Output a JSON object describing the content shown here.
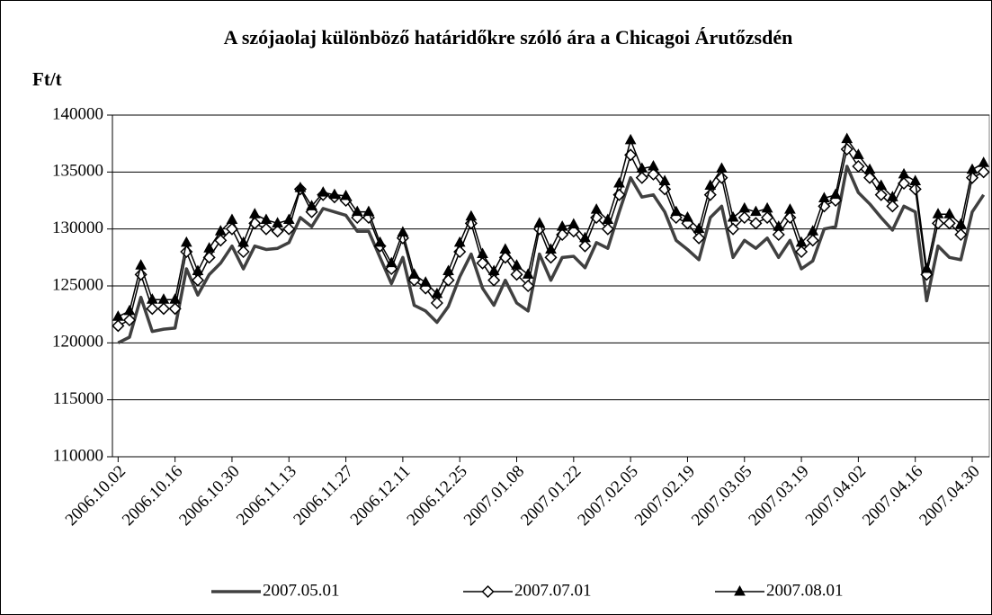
{
  "chart_data": {
    "type": "line",
    "title": "A szójaolaj különböző határidőkre szóló ára a Chicagoi Árutőzsdén",
    "y_label": "Ft/t",
    "categories": [
      "2006.10.02",
      null,
      null,
      null,
      null,
      "2006.10.16",
      null,
      null,
      null,
      null,
      "2006.10.30",
      null,
      null,
      null,
      null,
      "2006.11.13",
      null,
      null,
      null,
      null,
      "2006.11.27",
      null,
      null,
      null,
      null,
      "2006.12.11",
      null,
      null,
      null,
      null,
      "2006.12.25",
      null,
      null,
      null,
      null,
      "2007.01.08",
      null,
      null,
      null,
      null,
      "2007.01.22",
      null,
      null,
      null,
      null,
      "2007.02.05",
      null,
      null,
      null,
      null,
      "2007.02.19",
      null,
      null,
      null,
      null,
      "2007.03.05",
      null,
      null,
      null,
      null,
      "2007.03.19",
      null,
      null,
      null,
      null,
      "2007.04.02",
      null,
      null,
      null,
      null,
      "2007.04.16",
      null,
      null,
      null,
      null,
      "2007.04.30",
      null
    ],
    "series": [
      {
        "name": "2007.05.01",
        "color": "#404040",
        "marker": "none",
        "values": [
          120000,
          120500,
          124000,
          121000,
          121200,
          121300,
          126500,
          124200,
          126000,
          127000,
          128500,
          126500,
          128500,
          128200,
          128300,
          128800,
          131000,
          130200,
          131800,
          131500,
          131200,
          129800,
          129800,
          127500,
          125200,
          127500,
          123300,
          122800,
          121800,
          123200,
          125800,
          127800,
          124800,
          123300,
          125500,
          123500,
          122800,
          127800,
          125500,
          127500,
          127600,
          126600,
          128800,
          128300,
          131500,
          134500,
          132800,
          133000,
          131500,
          129000,
          128200,
          127300,
          131000,
          132000,
          127500,
          129000,
          128300,
          129200,
          127500,
          129000,
          126500,
          127200,
          130000,
          130200,
          135500,
          133200,
          132200,
          131000,
          129900,
          132000,
          131500,
          123700,
          128500,
          127500,
          127300,
          131500,
          133000
        ]
      },
      {
        "name": "2007.07.01",
        "color": "#000000",
        "marker": "diamond",
        "values": [
          121500,
          122000,
          126000,
          123000,
          123000,
          123000,
          128000,
          125500,
          127500,
          129000,
          130000,
          128000,
          130500,
          130000,
          129800,
          130000,
          133500,
          131500,
          133000,
          132800,
          132500,
          131000,
          131000,
          128500,
          126500,
          129200,
          125500,
          124800,
          123500,
          125500,
          128000,
          130500,
          127000,
          125500,
          127500,
          126000,
          125000,
          130000,
          127500,
          129500,
          129800,
          128500,
          131000,
          130000,
          133000,
          136500,
          134500,
          134800,
          133500,
          131000,
          130500,
          129200,
          133000,
          134500,
          130000,
          131000,
          130500,
          131000,
          129500,
          131000,
          128000,
          129000,
          132000,
          132500,
          137000,
          135500,
          134500,
          133000,
          132000,
          134000,
          133500,
          126000,
          130500,
          130500,
          129500,
          134500,
          135000
        ]
      },
      {
        "name": "2007.08.01",
        "color": "#000000",
        "marker": "triangle",
        "values": [
          122300,
          122800,
          126800,
          123800,
          123800,
          123800,
          128800,
          126300,
          128300,
          129800,
          130800,
          128800,
          131300,
          130800,
          130500,
          130800,
          133600,
          132000,
          133200,
          133000,
          132900,
          131500,
          131500,
          128800,
          127000,
          129700,
          126000,
          125300,
          124300,
          126300,
          128800,
          131100,
          127800,
          126300,
          128200,
          126800,
          126000,
          130500,
          128200,
          130200,
          130400,
          129200,
          131700,
          130800,
          134000,
          137800,
          135300,
          135500,
          134200,
          131500,
          131000,
          130000,
          133800,
          135300,
          131000,
          131800,
          131500,
          131800,
          130200,
          131700,
          128800,
          129800,
          132700,
          133000,
          137900,
          136500,
          135200,
          133800,
          132800,
          134800,
          134200,
          126500,
          131300,
          131300,
          130400,
          135200,
          135800
        ]
      }
    ],
    "ylim": [
      110000,
      140000
    ],
    "yticks": [
      110000,
      115000,
      120000,
      125000,
      130000,
      135000,
      140000
    ],
    "grid": true,
    "legend": "bottom"
  }
}
